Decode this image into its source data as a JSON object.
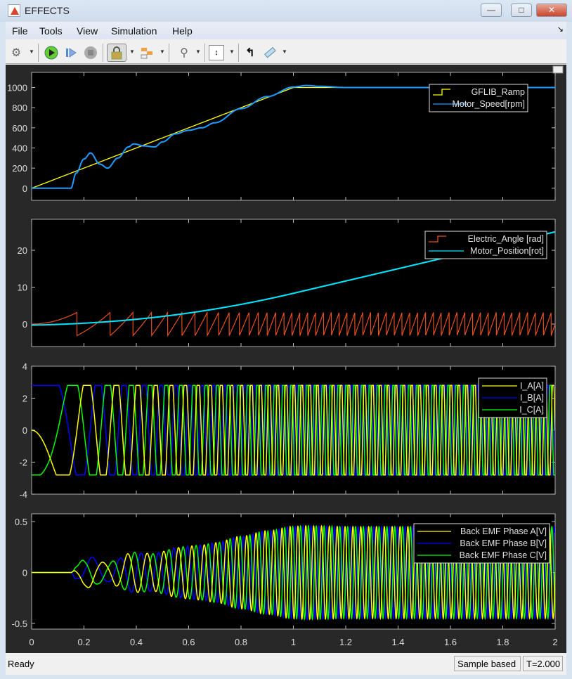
{
  "window": {
    "title": "EFFECTS",
    "minimize": "—",
    "maximize": "□",
    "close": "✕"
  },
  "menu": [
    "File",
    "Tools",
    "View",
    "Simulation",
    "Help"
  ],
  "toolbar": {
    "icons": [
      "gear-icon",
      "run-icon",
      "step-forward-icon",
      "stop-icon",
      "lock-icon",
      "signal-hierarchy-icon",
      "zoom-icon",
      "scale-axes-icon",
      "triggers-icon",
      "measurements-icon"
    ]
  },
  "status": {
    "left": "Ready",
    "mode": "Sample based",
    "time": "T=2.000"
  },
  "colors": {
    "ramp": "#ffff00",
    "speed": "#1e9bff",
    "angle": "#e8501c",
    "position": "#00e5ff",
    "phaseA": "#ffff00",
    "phaseB": "#0000ff",
    "phaseC": "#00ff00"
  },
  "chart_data": [
    {
      "type": "line",
      "title": "",
      "xlim": [
        0,
        2
      ],
      "xticks": [
        "0",
        "0.2",
        "0.4",
        "0.6",
        "0.8",
        "1",
        "1.2",
        "1.4",
        "1.6",
        "1.8",
        "2"
      ],
      "ylim": [
        -120,
        1150
      ],
      "yticks": [
        "0",
        "200",
        "400",
        "600",
        "800",
        "1000"
      ],
      "ytick_values": [
        0,
        200,
        400,
        600,
        800,
        1000
      ],
      "legend": "top-right",
      "series": [
        {
          "name": "GFLIB_Ramp",
          "model": "ramp 1000 rpm/s, saturating at 1000"
        },
        {
          "name": "Motor_Speed[rpm]",
          "t": [
            0,
            0.15,
            0.17,
            0.2,
            0.225,
            0.26,
            0.29,
            0.33,
            0.37,
            0.39,
            0.43,
            0.47,
            0.5,
            0.55,
            0.6,
            0.65,
            0.7,
            0.8,
            0.9,
            1.0,
            1.05,
            1.1,
            1.2,
            1.3,
            2.0
          ],
          "values": [
            0,
            0,
            150,
            290,
            350,
            240,
            200,
            300,
            410,
            440,
            420,
            410,
            460,
            540,
            575,
            600,
            650,
            790,
            910,
            1005,
            1020,
            1012,
            1000,
            1000,
            1000
          ]
        }
      ]
    },
    {
      "type": "line",
      "xlim": [
        0,
        2
      ],
      "ylim": [
        -6.1,
        28.4
      ],
      "yticks": [
        "0",
        "10",
        "20"
      ],
      "ytick_values": [
        0,
        10,
        20
      ],
      "legend": "top-right",
      "series": [
        {
          "name": "Electric_Angle [rad]",
          "model": "wrapped electrical angle, range -pi..pi, pole pairs 2"
        },
        {
          "name": "Motor_Position[rot]",
          "model": "integral of speed, reaching 25 rot at t=2"
        }
      ]
    },
    {
      "type": "line",
      "xlim": [
        0,
        2
      ],
      "ylim": [
        -4,
        4
      ],
      "yticks": [
        "-4",
        "-2",
        "0",
        "2",
        "4"
      ],
      "ytick_values": [
        -4,
        -2,
        0,
        2,
        4
      ],
      "legend": "top-right",
      "series": [
        {
          "name": "I_A[A]",
          "amplitude": 2.8
        },
        {
          "name": "I_B[A]",
          "amplitude": 2.8
        },
        {
          "name": "I_C[A]",
          "amplitude": 2.8
        }
      ]
    },
    {
      "type": "line",
      "xlim": [
        0,
        2
      ],
      "ylim": [
        -0.555,
        0.576
      ],
      "yticks": [
        "-0.5",
        "0",
        "0.5"
      ],
      "ytick_values": [
        -0.5,
        0,
        0.5
      ],
      "legend": "top-right",
      "series": [
        {
          "name": "Back EMF Phase A[V]",
          "amplitude_at_1000rpm": 0.45
        },
        {
          "name": "Back EMF Phase B[V]",
          "amplitude_at_1000rpm": 0.45
        },
        {
          "name": "Back EMF Phase C[V]",
          "amplitude_at_1000rpm": 0.45
        }
      ]
    }
  ]
}
